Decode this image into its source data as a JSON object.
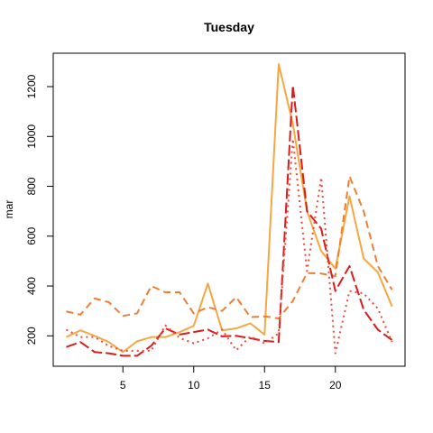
{
  "chart_data": {
    "type": "line",
    "title": "Tuesday",
    "xlabel": "",
    "ylabel": "mar",
    "xlim": [
      0.08,
      24.92
    ],
    "ylim": [
      78,
      1334
    ],
    "x": [
      1,
      2,
      3,
      4,
      5,
      6,
      7,
      8,
      9,
      10,
      11,
      12,
      13,
      14,
      15,
      16,
      17,
      18,
      19,
      20,
      21,
      22,
      23,
      24
    ],
    "xticks": [
      5,
      10,
      15,
      20
    ],
    "yticks": [
      200,
      400,
      600,
      800,
      1000,
      1200
    ],
    "grid": false,
    "series": [
      {
        "color": "#f5a742",
        "dash": "solid",
        "values": [
          195,
          222,
          200,
          175,
          135,
          178,
          195,
          195,
          215,
          240,
          410,
          222,
          230,
          250,
          205,
          1290,
          1050,
          700,
          540,
          470,
          760,
          510,
          455,
          318
        ]
      },
      {
        "color": "#f07c35",
        "dash": "dashed",
        "values": [
          298,
          285,
          350,
          335,
          280,
          290,
          400,
          375,
          375,
          290,
          315,
          300,
          355,
          275,
          278,
          270,
          340,
          452,
          450,
          440,
          840,
          700,
          480,
          385
        ]
      },
      {
        "color": "#d91c1c",
        "dash": "longdash",
        "values": [
          155,
          175,
          135,
          130,
          120,
          120,
          160,
          230,
          205,
          215,
          225,
          198,
          200,
          190,
          180,
          175,
          1205,
          700,
          630,
          380,
          480,
          305,
          225,
          183
        ]
      },
      {
        "color": "#ee4a3a",
        "dash": "dotted",
        "values": [
          225,
          195,
          195,
          160,
          140,
          140,
          140,
          242,
          192,
          170,
          190,
          225,
          142,
          198,
          170,
          210,
          990,
          460,
          835,
          130,
          380,
          370,
          310,
          175
        ]
      }
    ]
  }
}
